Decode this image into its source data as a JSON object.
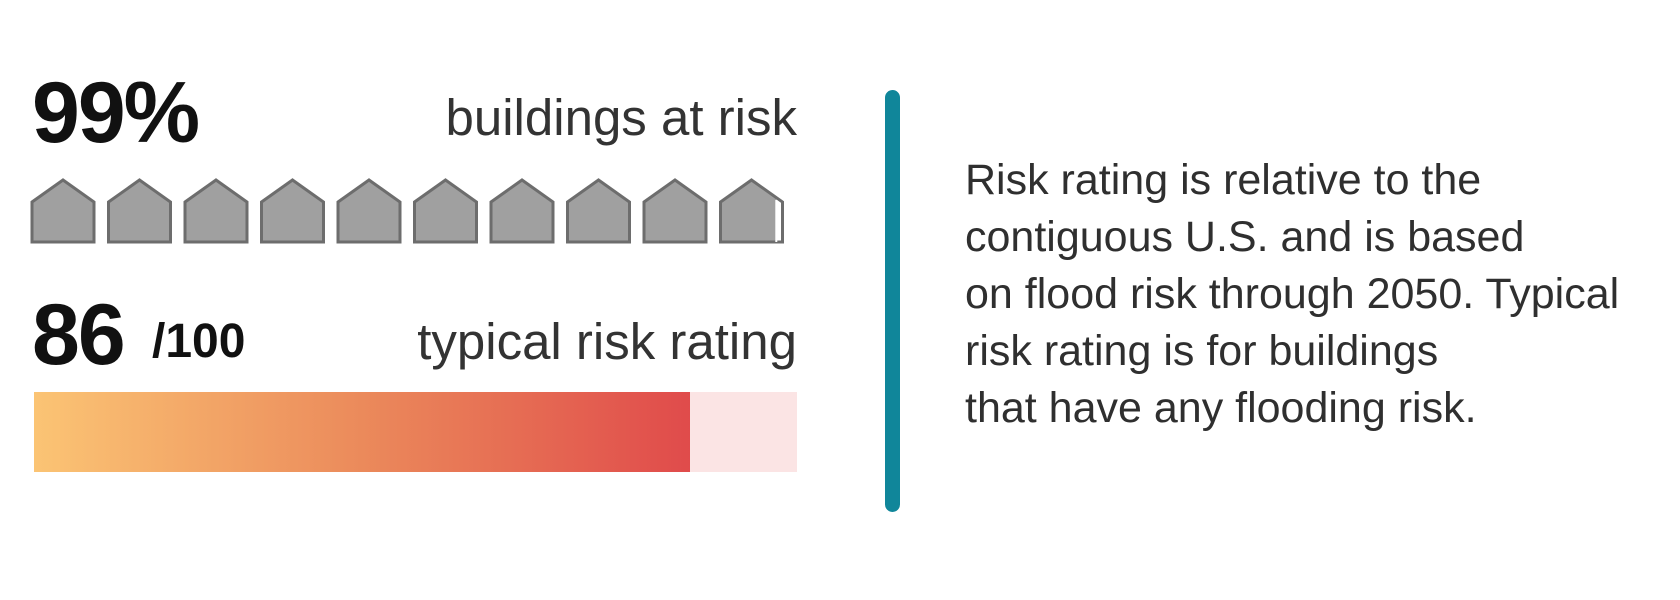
{
  "buildings_at_risk": {
    "value": "99%",
    "label": "buildings at risk",
    "houses_total": 10,
    "fraction": 0.99,
    "house_fill_color": "#a0a0a0",
    "house_stroke_color": "#6d6d6d"
  },
  "risk_rating": {
    "value": "86",
    "denominator": "/100",
    "label": "typical risk rating",
    "fraction": 0.86,
    "gradient_colors": [
      "#fbc474",
      "#eb8a5b",
      "#e04b4b"
    ],
    "track_color": "#fbe4e4"
  },
  "divider_color": "#10869a",
  "note": {
    "lines": [
      "Risk rating is relative to the",
      "contiguous U.S. and is based",
      "on flood risk through 2050. Typical",
      "risk rating is for buildings",
      "that have any flooding risk."
    ]
  }
}
